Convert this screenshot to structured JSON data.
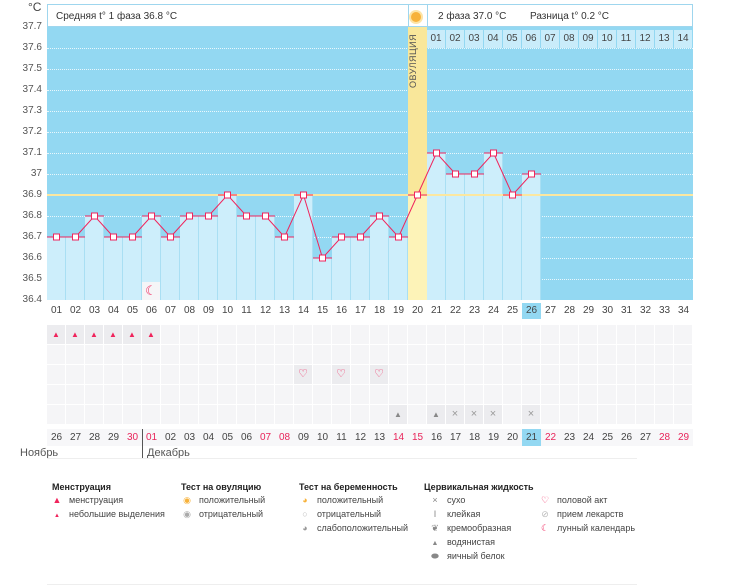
{
  "header": {
    "unit": "°C",
    "phase1": "Средняя t° 1 фаза 36.8 °C",
    "phase2": "2 фаза 37.0 °C",
    "diff": "Разница t° 0.2 °C",
    "ovulation_label": "ОВУЛЯЦИЯ"
  },
  "chart_data": {
    "type": "bar",
    "title": "",
    "xlabel": "",
    "ylabel": "°C",
    "ylim": [
      36.4,
      37.7
    ],
    "yticks": [
      "37.7",
      "37.6",
      "37.5",
      "37.4",
      "37.3",
      "37.2",
      "37.1",
      "37",
      "36.9",
      "36.8",
      "36.7",
      "36.6",
      "36.5",
      "36.4"
    ],
    "cycle_days": [
      "01",
      "02",
      "03",
      "04",
      "05",
      "06",
      "07",
      "08",
      "09",
      "10",
      "11",
      "12",
      "13",
      "14",
      "15",
      "16",
      "17",
      "18",
      "19",
      "20",
      "21",
      "22",
      "23",
      "24",
      "25",
      "26",
      "27",
      "28",
      "29",
      "30",
      "31",
      "32",
      "33",
      "34"
    ],
    "temperatures": [
      36.7,
      36.7,
      36.8,
      36.7,
      36.7,
      36.8,
      36.7,
      36.8,
      36.8,
      36.9,
      36.8,
      36.8,
      36.7,
      36.9,
      36.6,
      36.7,
      36.7,
      36.8,
      36.7,
      36.9,
      37.1,
      37.0,
      37.0,
      37.1,
      36.9,
      37.0
    ],
    "coverline": 36.9,
    "ovulation_day": 20,
    "selected_day": 26,
    "phase2_days": [
      "01",
      "02",
      "03",
      "04",
      "05",
      "06",
      "07",
      "08",
      "09",
      "10",
      "11",
      "12",
      "13",
      "14"
    ],
    "colors": {
      "background": "#93d8f2",
      "bar": "#cdeefb",
      "line": "#f0245c",
      "coverline": "#fbe7a0",
      "ovulation": "#fdf3b8"
    }
  },
  "markers": {
    "menstruation_days": [
      1,
      2,
      3,
      4,
      5,
      6
    ],
    "intercourse_days": [
      14,
      16,
      18
    ],
    "watery_days": [
      19,
      21
    ],
    "dry_days": [
      22,
      23,
      24,
      26
    ],
    "moon_day": 6
  },
  "dates": [
    "26",
    "27",
    "28",
    "29",
    "30",
    "01",
    "02",
    "03",
    "04",
    "05",
    "06",
    "07",
    "08",
    "09",
    "10",
    "11",
    "12",
    "13",
    "14",
    "15",
    "16",
    "17",
    "18",
    "19",
    "20",
    "21",
    "22",
    "23",
    "24",
    "25",
    "26",
    "27",
    "28",
    "29"
  ],
  "red_dates": [
    4,
    5,
    11,
    12,
    18,
    19,
    26,
    32,
    33
  ],
  "months": [
    "Ноябрь",
    "Декабрь"
  ],
  "legend": {
    "menstruation": {
      "title": "Менструация",
      "items": [
        "менструация",
        "небольшие выделения"
      ]
    },
    "ovtest": {
      "title": "Тест на овуляцию",
      "items": [
        "положительный",
        "отрицательный"
      ]
    },
    "pregtest": {
      "title": "Тест на беременность",
      "items": [
        "положительный",
        "отрицательный",
        "слабоположительный"
      ]
    },
    "cervical": {
      "title": "Цервикальная жидкость",
      "items": [
        "сухо",
        "клейкая",
        "кремообразная",
        "водянистая",
        "яичный белок"
      ]
    },
    "other": {
      "items": [
        "половой акт",
        "прием лекарств",
        "лунный календарь"
      ]
    }
  }
}
